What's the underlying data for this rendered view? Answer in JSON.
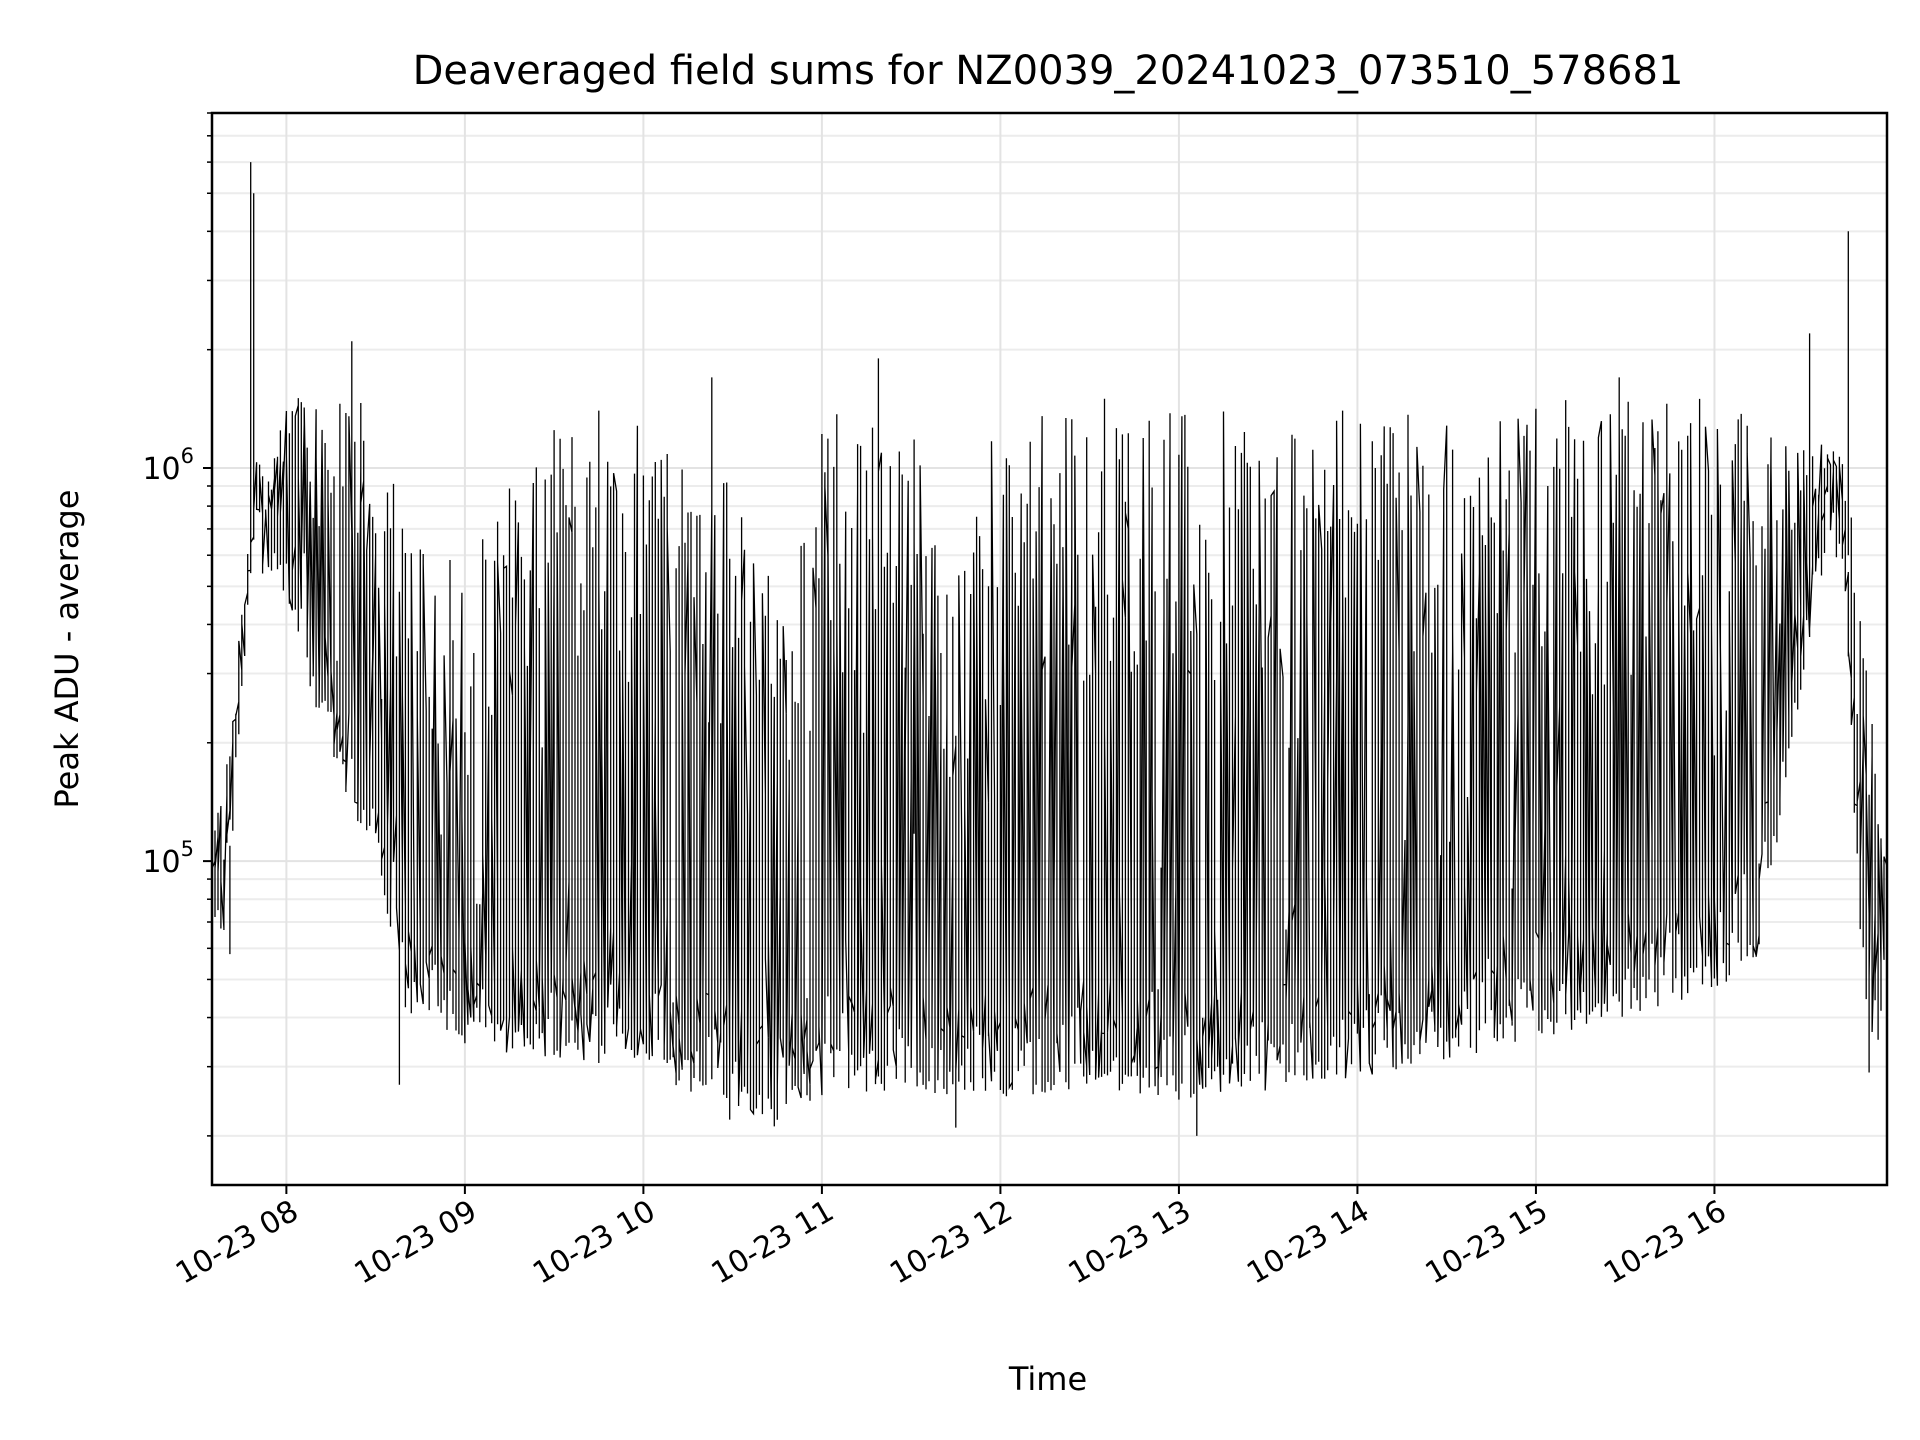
{
  "chart_data": {
    "type": "line",
    "title": "Deaveraged field sums for NZ0039_20241023_073510_578681",
    "xlabel": "Time",
    "ylabel": "Peak ADU - average",
    "yscale": "log",
    "grid": true,
    "xlim": [
      "2024-10-23T07:35",
      "2024-10-23T16:58"
    ],
    "ylim": [
      15000,
      8000000
    ],
    "x_ticks": [
      {
        "value": "2024-10-23T08:00",
        "label": "10-23 08"
      },
      {
        "value": "2024-10-23T09:00",
        "label": "10-23 09"
      },
      {
        "value": "2024-10-23T10:00",
        "label": "10-23 10"
      },
      {
        "value": "2024-10-23T11:00",
        "label": "10-23 11"
      },
      {
        "value": "2024-10-23T12:00",
        "label": "10-23 12"
      },
      {
        "value": "2024-10-23T13:00",
        "label": "10-23 13"
      },
      {
        "value": "2024-10-23T14:00",
        "label": "10-23 14"
      },
      {
        "value": "2024-10-23T15:00",
        "label": "10-23 15"
      },
      {
        "value": "2024-10-23T16:00",
        "label": "10-23 16"
      }
    ],
    "y_ticks": [
      {
        "value": 100000,
        "label": "10",
        "exp": "5"
      },
      {
        "value": 1000000,
        "label": "10",
        "exp": "6"
      }
    ],
    "series": [
      {
        "color": "#000000",
        "baseline": {
          "x": [
            "2024-10-23T07:35",
            "2024-10-23T07:40",
            "2024-10-23T07:45",
            "2024-10-23T07:50",
            "2024-10-23T08:00",
            "2024-10-23T08:15",
            "2024-10-23T08:30",
            "2024-10-23T08:40",
            "2024-10-23T09:00",
            "2024-10-23T09:30",
            "2024-10-23T10:00",
            "2024-10-23T10:30",
            "2024-10-23T10:45",
            "2024-10-23T11:00",
            "2024-10-23T11:30",
            "2024-10-23T12:00",
            "2024-10-23T12:30",
            "2024-10-23T13:00",
            "2024-10-23T13:30",
            "2024-10-23T14:00",
            "2024-10-23T14:30",
            "2024-10-23T15:00",
            "2024-10-23T15:30",
            "2024-10-23T16:00",
            "2024-10-23T16:15",
            "2024-10-23T16:30",
            "2024-10-23T16:40",
            "2024-10-23T16:45",
            "2024-10-23T16:50",
            "2024-10-23T16:55",
            "2024-10-23T16:58"
          ],
          "y": [
            95000,
            85000,
            300000,
            800000,
            650000,
            250000,
            150000,
            60000,
            48000,
            45000,
            42000,
            33000,
            30000,
            36000,
            37000,
            35000,
            38000,
            35000,
            37000,
            40000,
            44000,
            50000,
            57000,
            65000,
            80000,
            400000,
            950000,
            600000,
            70000,
            45000,
            90000
          ]
        },
        "peaks": {
          "x": [
            "2024-10-23T07:48",
            "2024-10-23T07:49",
            "2024-10-23T08:22",
            "2024-10-23T09:45",
            "2024-10-23T10:23",
            "2024-10-23T11:19",
            "2024-10-23T12:35",
            "2024-10-23T13:55",
            "2024-10-23T15:28",
            "2024-10-23T16:32",
            "2024-10-23T16:45"
          ],
          "y": [
            6000000,
            5000000,
            2100000,
            1400000,
            1700000,
            1900000,
            1500000,
            1400000,
            1700000,
            2200000,
            4000000
          ]
        },
        "dips": {
          "x": [
            "2024-10-23T07:41",
            "2024-10-23T08:38",
            "2024-10-23T10:29",
            "2024-10-23T11:45",
            "2024-10-23T13:06",
            "2024-10-23T16:52"
          ],
          "y": [
            58000,
            27000,
            22000,
            21000,
            20000,
            29000
          ]
        },
        "upper_envelope": {
          "x": [
            "2024-10-23T07:35",
            "2024-10-23T07:45",
            "2024-10-23T08:00",
            "2024-10-23T08:30",
            "2024-10-23T08:40",
            "2024-10-23T09:00",
            "2024-10-23T09:30",
            "2024-10-23T10:00",
            "2024-10-23T10:30",
            "2024-10-23T10:50",
            "2024-10-23T11:00",
            "2024-10-23T11:30",
            "2024-10-23T11:45",
            "2024-10-23T12:00",
            "2024-10-23T13:00",
            "2024-10-23T14:00",
            "2024-10-23T15:00",
            "2024-10-23T16:00",
            "2024-10-23T16:30",
            "2024-10-23T16:45",
            "2024-10-23T16:58"
          ],
          "y": [
            100000,
            300000,
            1600000,
            1500000,
            700000,
            600000,
            1300000,
            1300000,
            1000000,
            400000,
            1400000,
            1400000,
            500000,
            1400000,
            1400000,
            1400000,
            1500000,
            1500000,
            1200000,
            1100000,
            100000
          ]
        }
      }
    ]
  }
}
